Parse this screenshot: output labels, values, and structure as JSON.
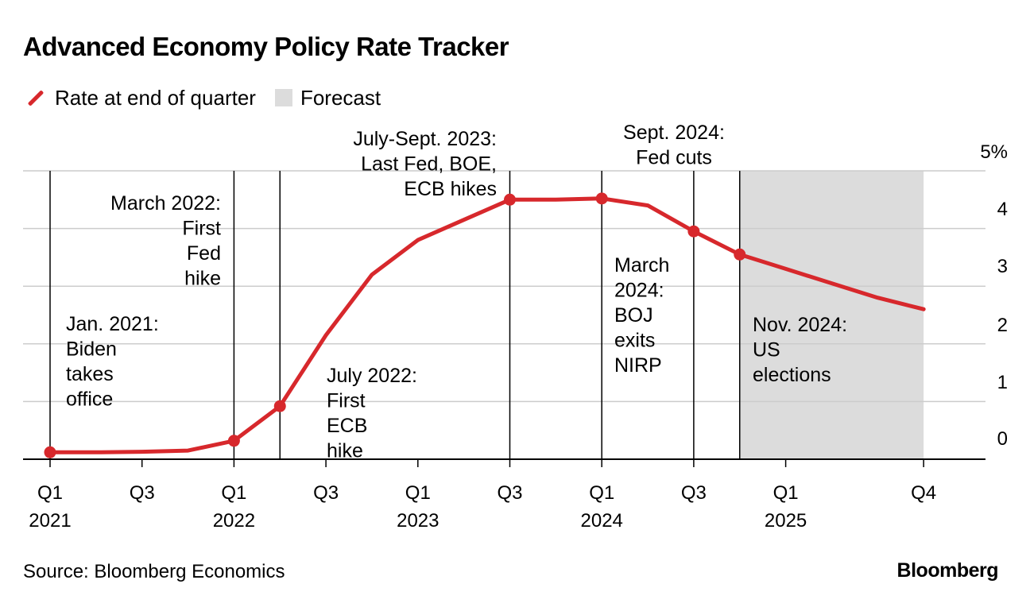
{
  "title": "Advanced Economy Policy Rate Tracker",
  "legend": {
    "rate": "Rate at end of quarter",
    "forecast": "Forecast"
  },
  "source": "Source: Bloomberg Economics",
  "brand": "Bloomberg",
  "colors": {
    "line": "#d7282c",
    "forecast_shade": "#dcdcdc",
    "grid": "#cccccc",
    "text": "#000000"
  },
  "chart_data": {
    "type": "line",
    "title": "Advanced Economy Policy Rate Tracker",
    "ylabel": "",
    "y_unit": "%",
    "ylim": [
      0,
      5
    ],
    "y_ticks": [
      "0",
      "1",
      "2",
      "3",
      "4",
      "5%"
    ],
    "x_periods": [
      "Q1 2021",
      "Q2 2021",
      "Q3 2021",
      "Q4 2021",
      "Q1 2022",
      "Q2 2022",
      "Q3 2022",
      "Q4 2022",
      "Q1 2023",
      "Q2 2023",
      "Q3 2023",
      "Q4 2023",
      "Q1 2024",
      "Q2 2024",
      "Q3 2024",
      "Q4 2024",
      "Q1 2025",
      "Q2 2025",
      "Q3 2025",
      "Q4 2025"
    ],
    "x_tick_labels": [
      {
        "period": "Q1 2021",
        "line1": "Q1",
        "line2": "2021"
      },
      {
        "period": "Q3 2021",
        "line1": "Q3",
        "line2": ""
      },
      {
        "period": "Q1 2022",
        "line1": "Q1",
        "line2": "2022"
      },
      {
        "period": "Q3 2022",
        "line1": "Q3",
        "line2": ""
      },
      {
        "period": "Q1 2023",
        "line1": "Q1",
        "line2": "2023"
      },
      {
        "period": "Q3 2023",
        "line1": "Q3",
        "line2": ""
      },
      {
        "period": "Q1 2024",
        "line1": "Q1",
        "line2": "2024"
      },
      {
        "period": "Q3 2024",
        "line1": "Q3",
        "line2": ""
      },
      {
        "period": "Q1 2025",
        "line1": "Q1",
        "line2": "2025"
      },
      {
        "period": "Q4 2025",
        "line1": "Q4",
        "line2": ""
      }
    ],
    "series": [
      {
        "name": "Rate at end of quarter",
        "values": [
          0.12,
          0.12,
          0.13,
          0.15,
          0.32,
          0.92,
          2.15,
          3.2,
          3.8,
          4.15,
          4.5,
          4.5,
          4.52,
          4.4,
          3.95,
          3.55,
          3.3,
          3.05,
          2.8,
          2.6
        ],
        "markers": [
          "Q1 2021",
          "Q1 2022",
          "Q2 2022",
          "Q3 2023",
          "Q1 2024",
          "Q3 2024",
          "Q4 2024"
        ]
      }
    ],
    "forecast_range": [
      "Q4 2024",
      "Q4 2025"
    ],
    "event_lines": [
      "Q1 2021",
      "Q1 2022",
      "Q2 2022",
      "Q3 2023",
      "Q1 2024",
      "Q3 2024",
      "Q4 2024"
    ],
    "grid": true,
    "legend_position": "top-left",
    "annotations": [
      {
        "id": "biden",
        "lines": [
          "Jan. 2021:",
          "Biden",
          "takes",
          "office"
        ]
      },
      {
        "id": "fed-hike",
        "lines": [
          "March 2022:",
          "First",
          "Fed",
          "hike"
        ]
      },
      {
        "id": "ecb-hike",
        "lines": [
          "July 2022:",
          "First",
          "ECB",
          "hike"
        ]
      },
      {
        "id": "last-hikes",
        "lines": [
          "July-Sept. 2023:",
          "Last Fed, BOE,",
          "ECB hikes"
        ]
      },
      {
        "id": "fed-cuts",
        "lines": [
          "Sept. 2024:",
          "Fed cuts"
        ]
      },
      {
        "id": "boj",
        "lines": [
          "March",
          "2024:",
          "BOJ",
          "exits",
          "NIRP"
        ]
      },
      {
        "id": "elections",
        "lines": [
          "Nov. 2024:",
          "US",
          "elections"
        ]
      }
    ]
  }
}
